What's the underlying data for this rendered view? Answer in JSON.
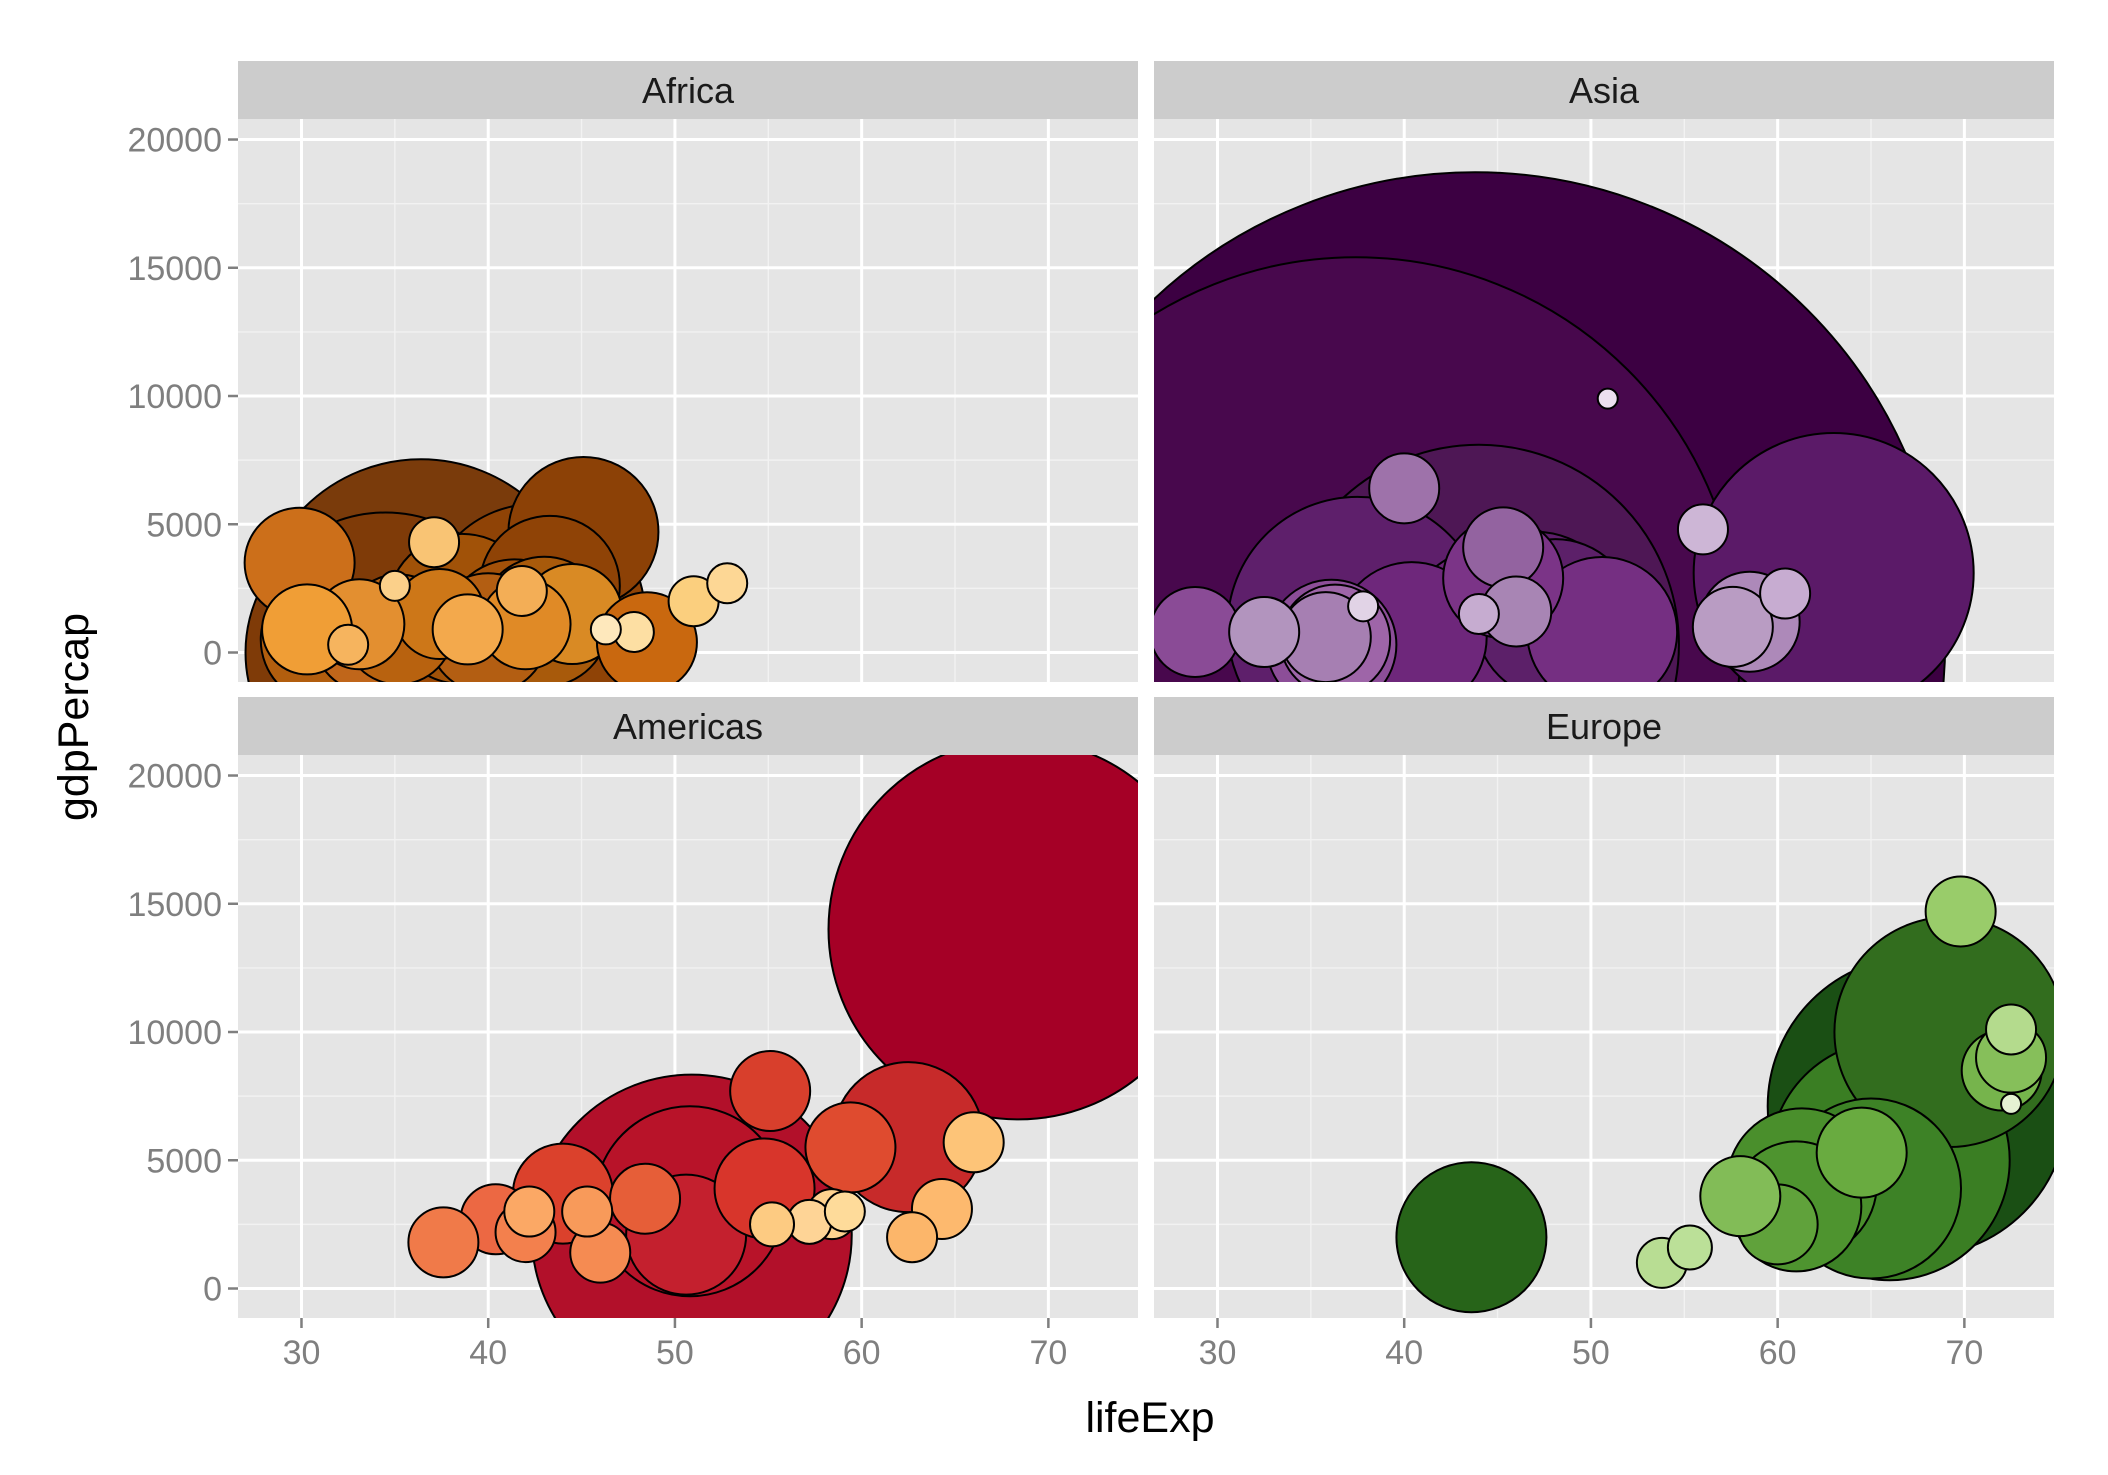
{
  "chart_data": {
    "type": "scatter",
    "subtype": "faceted bubble chart",
    "title": "",
    "xlabel": "lifeExp",
    "ylabel": "gdpPercap",
    "xlim": [
      26.6,
      74.8
    ],
    "ylim": [
      -1150,
      20800
    ],
    "x_ticks": [
      30,
      40,
      50,
      60,
      70
    ],
    "y_ticks": [
      0,
      5000,
      10000,
      15000,
      20000
    ],
    "grid": true,
    "legend": "none",
    "bubble_border_color": "#000000",
    "panel_background": "#e5e5e5",
    "strip_background": "#cccccc",
    "grid_color": "#ffffff",
    "facets": [
      {
        "name": "Africa",
        "points": [
          {
            "x": 34.5,
            "y": 0,
            "size": 140,
            "color": "#7f3b08"
          },
          {
            "x": 36.4,
            "y": 1100,
            "size": 165,
            "color": "#7a3b0b"
          },
          {
            "x": 42.5,
            "y": 1500,
            "size": 110,
            "color": "#8f4306"
          },
          {
            "x": 38.8,
            "y": 800,
            "size": 90,
            "color": "#9c4a07"
          },
          {
            "x": 43.3,
            "y": 2600,
            "size": 70,
            "color": "#8f4306"
          },
          {
            "x": 45.1,
            "y": 4700,
            "size": 75,
            "color": "#8c4106"
          },
          {
            "x": 38.6,
            "y": 1700,
            "size": 75,
            "color": "#a15208"
          },
          {
            "x": 41.4,
            "y": 900,
            "size": 70,
            "color": "#a35109"
          },
          {
            "x": 43.0,
            "y": 1200,
            "size": 65,
            "color": "#a85a0b"
          },
          {
            "x": 31.3,
            "y": 500,
            "size": 65,
            "color": "#b25e0e"
          },
          {
            "x": 40.0,
            "y": 750,
            "size": 60,
            "color": "#b35e12"
          },
          {
            "x": 33.6,
            "y": 600,
            "size": 55,
            "color": "#c0661a"
          },
          {
            "x": 35.2,
            "y": 900,
            "size": 55,
            "color": "#b8620f"
          },
          {
            "x": 37.4,
            "y": 1500,
            "size": 45,
            "color": "#cd7718"
          },
          {
            "x": 44.5,
            "y": 1500,
            "size": 50,
            "color": "#d98a24"
          },
          {
            "x": 42.0,
            "y": 1100,
            "size": 45,
            "color": "#e08a26"
          },
          {
            "x": 29.9,
            "y": 3500,
            "size": 55,
            "color": "#cc6f1a"
          },
          {
            "x": 33.1,
            "y": 1100,
            "size": 45,
            "color": "#e38f30"
          },
          {
            "x": 30.3,
            "y": 900,
            "size": 45,
            "color": "#f09e36"
          },
          {
            "x": 48.5,
            "y": 400,
            "size": 50,
            "color": "#c9680f"
          },
          {
            "x": 38.9,
            "y": 900,
            "size": 35,
            "color": "#f3a94c"
          },
          {
            "x": 41.8,
            "y": 2400,
            "size": 25,
            "color": "#f3ae56"
          },
          {
            "x": 37.1,
            "y": 4300,
            "size": 25,
            "color": "#f9c474"
          },
          {
            "x": 51.0,
            "y": 2000,
            "size": 25,
            "color": "#fbcf7e"
          },
          {
            "x": 52.8,
            "y": 2700,
            "size": 20,
            "color": "#fdd795"
          },
          {
            "x": 47.8,
            "y": 800,
            "size": 20,
            "color": "#fddfa3"
          },
          {
            "x": 46.3,
            "y": 900,
            "size": 15,
            "color": "#fee8bc"
          },
          {
            "x": 32.5,
            "y": 300,
            "size": 20,
            "color": "#f6b45e"
          },
          {
            "x": 35.0,
            "y": 2600,
            "size": 15,
            "color": "#fbd08a"
          }
        ]
      },
      {
        "name": "Asia",
        "points": [
          {
            "x": 43.8,
            "y": 400,
            "size": 470,
            "color": "#3c0042"
          },
          {
            "x": 37.4,
            "y": 400,
            "size": 385,
            "color": "#48084d"
          },
          {
            "x": 44.0,
            "y": 300,
            "size": 200,
            "color": "#4e1755"
          },
          {
            "x": 63.0,
            "y": 3100,
            "size": 140,
            "color": "#5b1a68"
          },
          {
            "x": 37.5,
            "y": 1000,
            "size": 130,
            "color": "#5e1f6b"
          },
          {
            "x": 47.0,
            "y": 1200,
            "size": 90,
            "color": "#5d1e6a"
          },
          {
            "x": 48.1,
            "y": 1300,
            "size": 80,
            "color": "#5c2069"
          },
          {
            "x": 44.7,
            "y": 600,
            "size": 90,
            "color": "#6a2475"
          },
          {
            "x": 40.4,
            "y": 600,
            "size": 75,
            "color": "#6e277b"
          },
          {
            "x": 50.6,
            "y": 800,
            "size": 75,
            "color": "#752f82"
          },
          {
            "x": 45.3,
            "y": 2900,
            "size": 60,
            "color": "#7b3487"
          },
          {
            "x": 36.1,
            "y": 300,
            "size": 65,
            "color": "#8c4e98"
          },
          {
            "x": 28.8,
            "y": 800,
            "size": 45,
            "color": "#8a4b96"
          },
          {
            "x": 36.3,
            "y": 500,
            "size": 55,
            "color": "#9e65a8"
          },
          {
            "x": 45.3,
            "y": 4100,
            "size": 40,
            "color": "#9363a0"
          },
          {
            "x": 46.0,
            "y": 1600,
            "size": 35,
            "color": "#a885b4"
          },
          {
            "x": 40.0,
            "y": 6400,
            "size": 35,
            "color": "#9e72aa"
          },
          {
            "x": 32.5,
            "y": 800,
            "size": 35,
            "color": "#b294be"
          },
          {
            "x": 58.5,
            "y": 1200,
            "size": 50,
            "color": "#ad89b9"
          },
          {
            "x": 57.6,
            "y": 1000,
            "size": 40,
            "color": "#b99cc3"
          },
          {
            "x": 56.0,
            "y": 4800,
            "size": 25,
            "color": "#cdb6d6"
          },
          {
            "x": 60.4,
            "y": 2300,
            "size": 25,
            "color": "#c7acd1"
          },
          {
            "x": 44.0,
            "y": 1500,
            "size": 20,
            "color": "#c6acd0"
          },
          {
            "x": 37.8,
            "y": 1800,
            "size": 15,
            "color": "#e1d3e6"
          },
          {
            "x": 50.9,
            "y": 9900,
            "size": 10,
            "color": "#ecdfef"
          },
          {
            "x": 35.8,
            "y": 600,
            "size": 45,
            "color": "#a67fb2"
          }
        ]
      },
      {
        "name": "Americas",
        "points": [
          {
            "x": 68.4,
            "y": 14000,
            "size": 190,
            "color": "#a50026"
          },
          {
            "x": 50.9,
            "y": 2100,
            "size": 160,
            "color": "#b2102a"
          },
          {
            "x": 50.8,
            "y": 3400,
            "size": 95,
            "color": "#b81329"
          },
          {
            "x": 50.6,
            "y": 2100,
            "size": 60,
            "color": "#c4202e"
          },
          {
            "x": 62.5,
            "y": 5900,
            "size": 75,
            "color": "#c72a2a"
          },
          {
            "x": 54.8,
            "y": 3900,
            "size": 50,
            "color": "#d8352b"
          },
          {
            "x": 55.1,
            "y": 7700,
            "size": 40,
            "color": "#d83f2c"
          },
          {
            "x": 59.4,
            "y": 5500,
            "size": 45,
            "color": "#df4b2f"
          },
          {
            "x": 44.0,
            "y": 3700,
            "size": 50,
            "color": "#db412c"
          },
          {
            "x": 48.4,
            "y": 3500,
            "size": 35,
            "color": "#e65e38"
          },
          {
            "x": 40.4,
            "y": 2700,
            "size": 35,
            "color": "#ec6843"
          },
          {
            "x": 37.6,
            "y": 1800,
            "size": 35,
            "color": "#f07a49"
          },
          {
            "x": 42.0,
            "y": 2200,
            "size": 30,
            "color": "#f3804d"
          },
          {
            "x": 46.0,
            "y": 1400,
            "size": 30,
            "color": "#f58b52"
          },
          {
            "x": 45.3,
            "y": 3000,
            "size": 25,
            "color": "#f89a5a"
          },
          {
            "x": 42.2,
            "y": 3000,
            "size": 25,
            "color": "#fba865"
          },
          {
            "x": 64.3,
            "y": 3100,
            "size": 30,
            "color": "#fdb96e"
          },
          {
            "x": 66.0,
            "y": 5700,
            "size": 30,
            "color": "#fdc478"
          },
          {
            "x": 62.7,
            "y": 2000,
            "size": 25,
            "color": "#fcb66a"
          },
          {
            "x": 58.4,
            "y": 2900,
            "size": 25,
            "color": "#fed28f"
          },
          {
            "x": 59.1,
            "y": 3000,
            "size": 20,
            "color": "#fedb9a"
          },
          {
            "x": 57.2,
            "y": 2600,
            "size": 22,
            "color": "#fed496"
          },
          {
            "x": 55.2,
            "y": 2500,
            "size": 22,
            "color": "#fdcb82"
          }
        ]
      },
      {
        "name": "Europe",
        "points": [
          {
            "x": 67.5,
            "y": 7100,
            "size": 150,
            "color": "#1a4f14"
          },
          {
            "x": 43.6,
            "y": 2000,
            "size": 75,
            "color": "#276419"
          },
          {
            "x": 69.2,
            "y": 10000,
            "size": 115,
            "color": "#326d1e"
          },
          {
            "x": 66.0,
            "y": 5000,
            "size": 120,
            "color": "#3a7e23"
          },
          {
            "x": 65.0,
            "y": 3900,
            "size": 90,
            "color": "#3d8226"
          },
          {
            "x": 61.3,
            "y": 4100,
            "size": 75,
            "color": "#4a8f2c"
          },
          {
            "x": 61.0,
            "y": 3200,
            "size": 65,
            "color": "#4e942f"
          },
          {
            "x": 60.0,
            "y": 2500,
            "size": 40,
            "color": "#60a23b"
          },
          {
            "x": 64.5,
            "y": 5300,
            "size": 45,
            "color": "#69ab40"
          },
          {
            "x": 72.0,
            "y": 8500,
            "size": 40,
            "color": "#76b44c"
          },
          {
            "x": 58.0,
            "y": 3600,
            "size": 40,
            "color": "#82bc57"
          },
          {
            "x": 69.8,
            "y": 14700,
            "size": 35,
            "color": "#99cc6a"
          },
          {
            "x": 72.5,
            "y": 9000,
            "size": 35,
            "color": "#86bf5a"
          },
          {
            "x": 72.5,
            "y": 10100,
            "size": 25,
            "color": "#b4db8d"
          },
          {
            "x": 55.3,
            "y": 1600,
            "size": 22,
            "color": "#bbe098"
          },
          {
            "x": 53.8,
            "y": 1000,
            "size": 25,
            "color": "#b8dd93"
          },
          {
            "x": 72.5,
            "y": 7200,
            "size": 10,
            "color": "#e5f2d3"
          }
        ]
      }
    ]
  }
}
